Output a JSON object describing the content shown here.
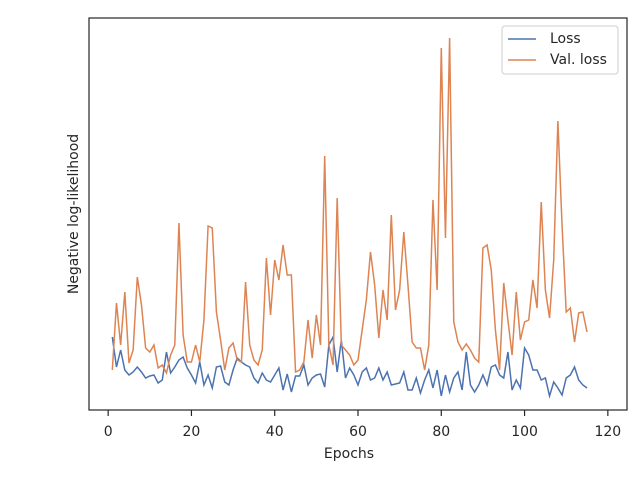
{
  "chart_data": {
    "type": "line",
    "xlabel": "Epochs",
    "ylabel": "Negative log-likelihood",
    "x": [
      1,
      2,
      3,
      4,
      5,
      6,
      7,
      8,
      9,
      10,
      11,
      12,
      13,
      14,
      15,
      16,
      17,
      18,
      19,
      20,
      21,
      22,
      23,
      24,
      25,
      26,
      27,
      28,
      29,
      30,
      31,
      32,
      33,
      34,
      35,
      36,
      37,
      38,
      39,
      40,
      41,
      42,
      43,
      44,
      45,
      46,
      47,
      48,
      49,
      50,
      51,
      52,
      53,
      54,
      55,
      56,
      57,
      58,
      59,
      60,
      61,
      62,
      63,
      64,
      65,
      66,
      67,
      68,
      69,
      70,
      71,
      72,
      73,
      74,
      75,
      76,
      77,
      78,
      79,
      80,
      81,
      82,
      83,
      84,
      85,
      86,
      87,
      88,
      89,
      90,
      91,
      92,
      93,
      94,
      95,
      96,
      97,
      98,
      99,
      100,
      101,
      102,
      103,
      104,
      105,
      106,
      107,
      108,
      109,
      110,
      111,
      112,
      113,
      114,
      115
    ],
    "series": [
      {
        "name": "Loss",
        "color": "#4c72b0",
        "values": [
          73,
          43,
          60,
          40,
          35,
          38,
          43,
          38,
          32,
          34,
          35,
          27,
          30,
          58,
          37,
          43,
          50,
          53,
          42,
          35,
          27,
          48,
          25,
          35,
          22,
          43,
          44,
          28,
          25,
          40,
          52,
          48,
          45,
          43,
          32,
          27,
          37,
          30,
          28,
          35,
          42,
          20,
          36,
          18,
          34,
          34,
          45,
          25,
          32,
          35,
          36,
          23,
          65,
          73,
          38,
          70,
          32,
          42,
          35,
          25,
          38,
          42,
          30,
          32,
          42,
          30,
          38,
          25,
          26,
          27,
          38,
          20,
          20,
          32,
          17,
          30,
          40,
          22,
          40,
          14,
          35,
          18,
          32,
          38,
          20,
          58,
          25,
          18,
          25,
          35,
          25,
          43,
          45,
          35,
          32,
          58,
          20,
          30,
          22,
          62,
          55,
          40,
          40,
          30,
          32,
          14,
          28,
          22,
          15,
          32,
          35,
          43,
          30,
          25,
          22
        ]
      },
      {
        "name": "Val. loss",
        "color": "#dd8452",
        "values": [
          40,
          107,
          65,
          118,
          47,
          60,
          133,
          105,
          62,
          58,
          65,
          42,
          45,
          37,
          55,
          65,
          187,
          75,
          48,
          48,
          65,
          48,
          90,
          184,
          182,
          98,
          70,
          40,
          62,
          67,
          50,
          48,
          128,
          65,
          50,
          45,
          60,
          152,
          95,
          150,
          130,
          165,
          135,
          135,
          38,
          40,
          48,
          90,
          52,
          95,
          65,
          254,
          65,
          45,
          212,
          65,
          60,
          55,
          45,
          50,
          80,
          110,
          158,
          125,
          72,
          120,
          90,
          195,
          100,
          120,
          178,
          125,
          68,
          62,
          62,
          40,
          65,
          210,
          120,
          362,
          172,
          372,
          88,
          68,
          60,
          66,
          60,
          52,
          48,
          162,
          165,
          140,
          80,
          40,
          127,
          90,
          55,
          118,
          70,
          88,
          90,
          130,
          102,
          208,
          120,
          92,
          150,
          289,
          185,
          98,
          102,
          68,
          97,
          98,
          78
        ]
      }
    ],
    "xlim": [
      -4.6,
      124.6
    ],
    "xticks": [
      0,
      20,
      40,
      60,
      80,
      100,
      120
    ],
    "ylim": [
      0,
      392
    ],
    "legend": "upper right"
  }
}
